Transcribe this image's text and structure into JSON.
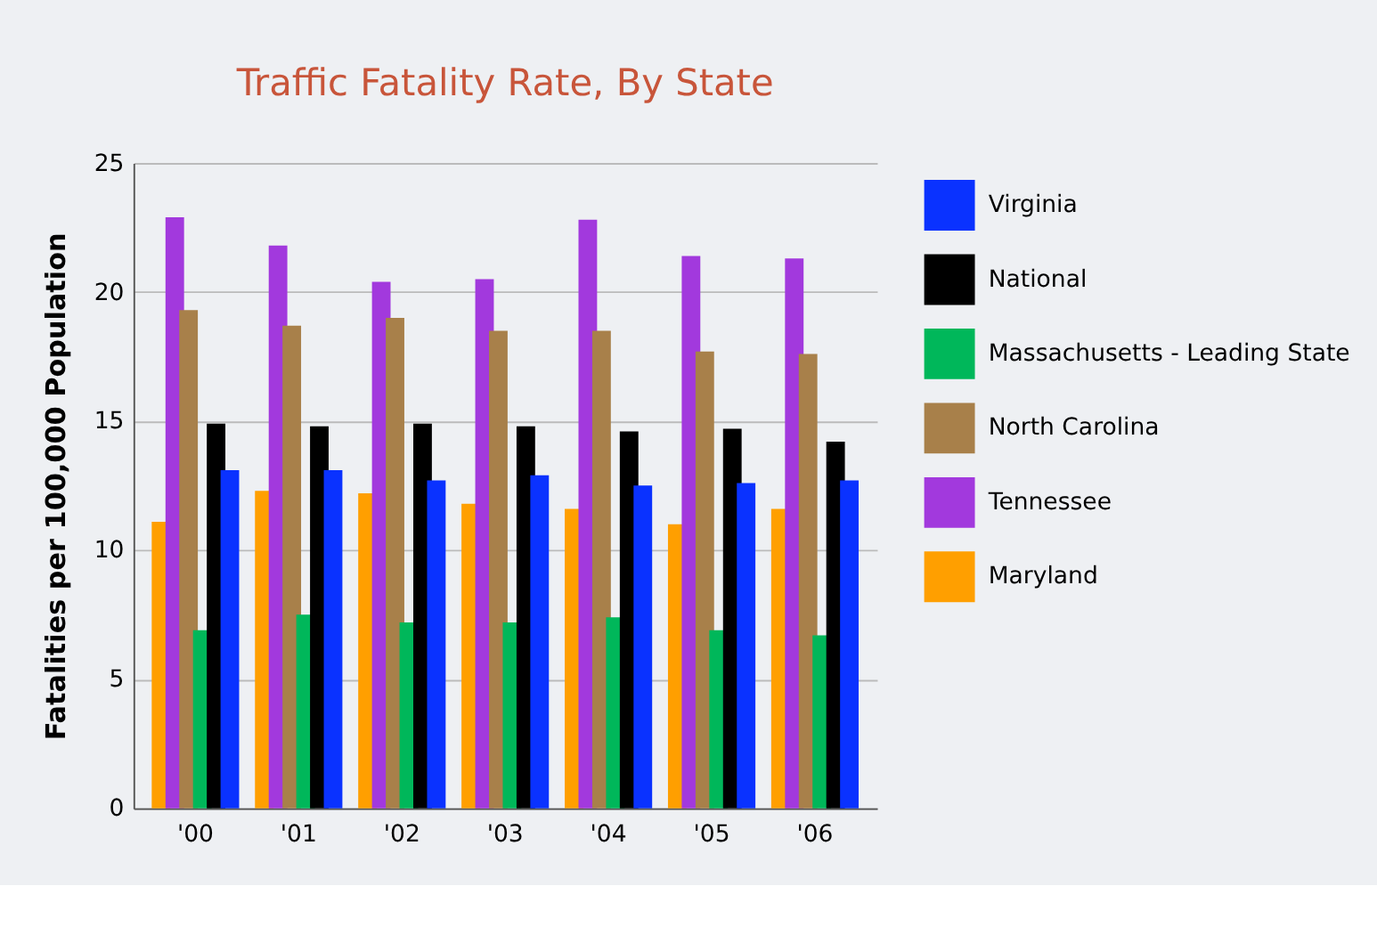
{
  "chart_data": {
    "type": "bar",
    "title": "Traffic Fatality Rate, By State",
    "ylabel": "Fatalities per 100,000 Population",
    "categories": [
      "'00",
      "'01",
      "'02",
      "'03",
      "'04",
      "'05",
      "'06"
    ],
    "series": [
      {
        "name": "Maryland",
        "color": "#ff9f00",
        "values": [
          11.1,
          12.3,
          12.2,
          11.8,
          11.6,
          11.0,
          11.6
        ]
      },
      {
        "name": "Tennessee",
        "color": "#a239dd",
        "values": [
          22.9,
          21.8,
          20.4,
          20.5,
          22.8,
          21.4,
          21.3
        ]
      },
      {
        "name": "North Carolina",
        "color": "#a8804a",
        "values": [
          19.3,
          18.7,
          19.0,
          18.5,
          18.5,
          17.7,
          17.6
        ]
      },
      {
        "name": "Massachusetts - Leading State",
        "color": "#00b75a",
        "values": [
          6.9,
          7.5,
          7.2,
          7.2,
          7.4,
          6.9,
          6.7
        ]
      },
      {
        "name": "National",
        "color": "#000000",
        "values": [
          14.9,
          14.8,
          14.9,
          14.8,
          14.6,
          14.7,
          14.2
        ]
      },
      {
        "name": "Virginia",
        "color": "#0a32ff",
        "values": [
          13.1,
          13.1,
          12.7,
          12.9,
          12.5,
          12.6,
          12.7
        ]
      }
    ],
    "ylim": [
      0,
      25
    ],
    "yticks": [
      0,
      5,
      10,
      15,
      20,
      25
    ],
    "grid": "y",
    "legend": "right"
  }
}
